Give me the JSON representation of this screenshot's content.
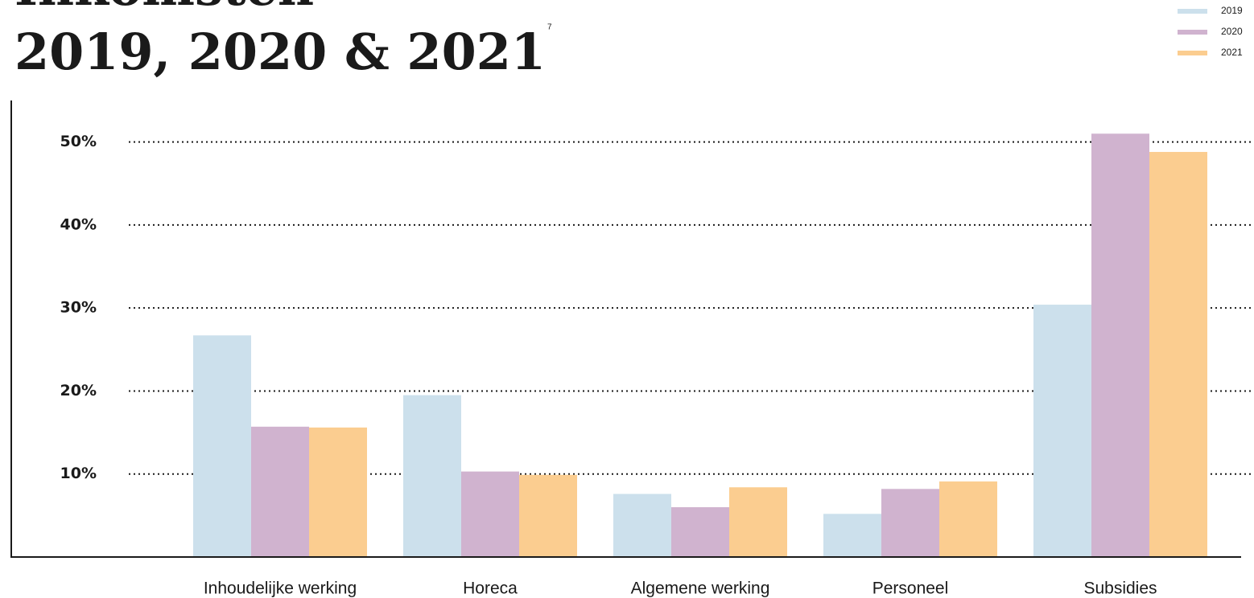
{
  "chart_data": {
    "type": "bar",
    "title_lines": [
      "Inkomsten",
      "2019, 2020 & 2021"
    ],
    "footnote": "7",
    "categories": [
      "Inhoudelijke werking",
      "Horeca",
      "Algemene werking",
      "Personeel",
      "Subsidies"
    ],
    "series": [
      {
        "name": "2019",
        "color": "#cce0ec",
        "values": [
          26.7,
          19.5,
          7.6,
          5.2,
          30.4
        ]
      },
      {
        "name": "2020",
        "color": "#d0b3cf",
        "values": [
          15.7,
          10.3,
          6.0,
          8.2,
          51.0
        ]
      },
      {
        "name": "2021",
        "color": "#fbcd90",
        "values": [
          15.6,
          9.9,
          8.4,
          9.1,
          48.8
        ]
      }
    ],
    "ylim": [
      0,
      55
    ],
    "yticks": [
      {
        "value": 10,
        "label": "10%"
      },
      {
        "value": 20,
        "label": "20%"
      },
      {
        "value": 30,
        "label": "30%"
      },
      {
        "value": 40,
        "label": "40%"
      },
      {
        "value": 50,
        "label": "50%"
      }
    ],
    "grid": true
  }
}
